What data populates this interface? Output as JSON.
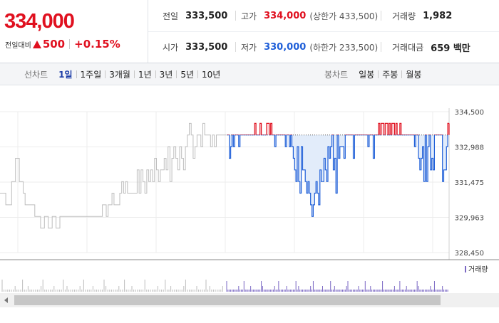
{
  "summary": {
    "price": "334,000",
    "change_label": "전일대비",
    "change_value": "500",
    "change_rate": "+0.15%"
  },
  "stats": {
    "prev_close": {
      "label": "전일",
      "value": "333,500"
    },
    "high": {
      "label": "고가",
      "value": "334,000",
      "sub": "(상한가 433,500)"
    },
    "volume": {
      "label": "거래량",
      "value": "1,982"
    },
    "open": {
      "label": "시가",
      "value": "333,500"
    },
    "low": {
      "label": "저가",
      "value": "330,000",
      "sub": "(하한가 233,500)"
    },
    "trade_value": {
      "label": "거래대금",
      "value": "659 백만"
    }
  },
  "line_tabs": {
    "label": "선차트",
    "items": [
      "1일",
      "1주일",
      "3개월",
      "1년",
      "3년",
      "5년",
      "10년"
    ],
    "active": 0
  },
  "candle_tabs": {
    "label": "봉차트",
    "items": [
      "일봉",
      "주봉",
      "월봉"
    ]
  },
  "colors": {
    "up": "#e0101f",
    "down": "#1f5fd8",
    "prev_day": "#bdbdbd",
    "volume": "#7b68c4"
  },
  "chart_data": {
    "type": "line",
    "ytick_labels": [
      "334,500",
      "332,988",
      "331,475",
      "329,963",
      "328,450"
    ],
    "ylim": [
      328450,
      334500
    ],
    "reference_price": 333500,
    "legend": "거래량",
    "series": [
      {
        "values": [
          331000,
          331000,
          331000,
          330500,
          330500,
          330500,
          331500,
          331500,
          332500,
          332500,
          331500,
          331500,
          331000,
          330500,
          330500,
          330500,
          330500,
          330500,
          330000,
          330000,
          330000,
          329500,
          329500,
          330000,
          330000,
          329500,
          329500,
          330000,
          330000,
          329500,
          329500,
          330000,
          330000,
          330000,
          330000,
          330000,
          330000,
          330000,
          330000,
          330000,
          330000,
          330000,
          330000,
          330000,
          330000,
          330000,
          330000,
          330000,
          330000,
          330000,
          330000,
          330000,
          330000,
          330500,
          330500,
          330000,
          330500,
          330500,
          331000,
          330500,
          330500,
          330500,
          331000,
          331500,
          331000,
          331500,
          331000,
          331000,
          331000,
          331000,
          331000,
          332000,
          331000,
          332000,
          331500,
          331000,
          332000,
          331500,
          332000,
          331500,
          332500,
          332000,
          331500,
          332000,
          332000,
          332500,
          332000,
          333000,
          331500,
          332500,
          333000,
          332500,
          332000,
          333000,
          332500,
          332000,
          333000,
          333500,
          334000,
          333500,
          332500,
          333000,
          333500,
          333500,
          333000,
          334000,
          333500,
          333500,
          333500,
          333000,
          333500,
          333000,
          333500,
          333500,
          333500,
          333500,
          333500
        ]
      },
      {
        "values": [
          333500,
          333500,
          332500,
          333000,
          333500,
          333000,
          333500,
          333500,
          333500,
          333000,
          333500,
          333500,
          333500,
          333500,
          333500,
          333500,
          333500,
          333500,
          333500,
          333500,
          333500,
          334000,
          333500,
          333500,
          333500,
          334000,
          333500,
          333500,
          333500,
          333500,
          334000,
          334000,
          333500,
          334000,
          333500,
          333500,
          333000,
          333500,
          333500,
          333500,
          333500,
          333500,
          333500,
          333500,
          333000,
          333500,
          333500,
          333000,
          333500,
          333000,
          332500,
          332000,
          331500,
          333000,
          331500,
          331000,
          333000,
          332000,
          332000,
          331500,
          331000,
          331500,
          331000,
          330500,
          330000,
          330500,
          331000,
          331500,
          331000,
          330500,
          332000,
          331500,
          331500,
          332500,
          332000,
          331500,
          333000,
          332500,
          333000,
          333500,
          332000,
          332500,
          331000,
          333500,
          332500,
          333000,
          333000,
          333000,
          332500,
          333500,
          333500,
          333500,
          333500,
          333500,
          333500,
          332500,
          333500,
          333500,
          333500,
          333500,
          333500,
          333500,
          333500,
          333500,
          333500,
          333500,
          333000,
          333500,
          333500,
          333500,
          332500,
          333500,
          333500,
          333500,
          334000,
          333500,
          334000,
          334000,
          333500,
          334000,
          334000,
          333500,
          334000,
          333500,
          334000,
          334000,
          333500,
          334000,
          333500,
          333500,
          334000,
          333500,
          333500,
          333500,
          333500,
          333500,
          333500,
          333500,
          333500,
          333500,
          333500,
          333000,
          333500,
          333500,
          332500,
          332000,
          332500,
          333000,
          331500,
          333500,
          331500,
          333000,
          333500,
          332000,
          332500,
          332000,
          333500,
          333500,
          333500,
          333500,
          333500,
          333500,
          331500,
          332000,
          332000,
          333000,
          334000
        ]
      }
    ]
  }
}
